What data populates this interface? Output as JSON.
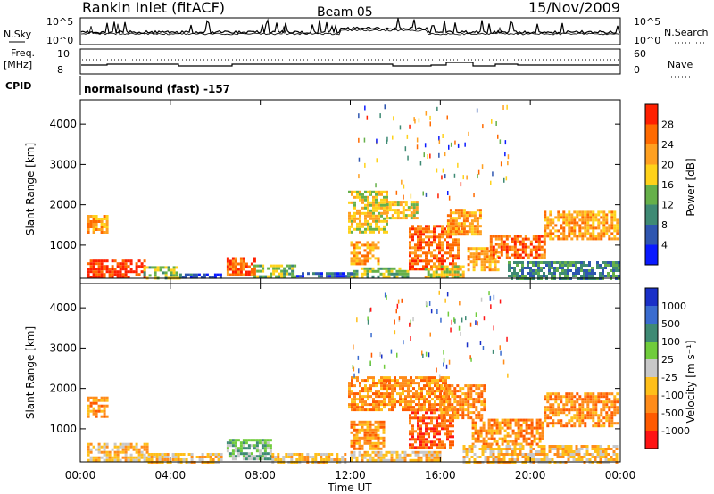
{
  "header": {
    "station": "Rankin Inlet (fitACF)",
    "beam": "Beam 05",
    "date": "15/Nov/2009"
  },
  "top_panels": {
    "nsky_label": "N.Sky",
    "nsearch_label": "N.Search",
    "nsky_ticks": [
      "10^5",
      "10^0"
    ],
    "nsearch_ticks": [
      "10^5",
      "10^0"
    ],
    "freq_label_1": "Freq.",
    "freq_label_2": "[MHz]",
    "freq_ticks": [
      "10",
      "8"
    ],
    "nave_label": "Nave",
    "nave_ticks": [
      "60",
      "0"
    ],
    "cpid_label": "CPID",
    "cpid_text": "normalsound (fast) -157"
  },
  "colors": {
    "power_scale": [
      "#0a1aff",
      "#2f56b0",
      "#3f8a74",
      "#66b04a",
      "#ffd21a",
      "#ffa020",
      "#ff6a00",
      "#ff2000"
    ],
    "velocity_scale": [
      "#ff1414",
      "#ff5a00",
      "#ff8c1a",
      "#ffbf1a",
      "#c8c8c8",
      "#70cc3c",
      "#3f8a74",
      "#3a6cd0",
      "#1a30c8"
    ]
  },
  "chart_data": [
    {
      "type": "heatmap",
      "name": "power",
      "xlabel": "Time UT",
      "ylabel": "Slant Range [km]",
      "x_ticks": [
        "00:00",
        "04:00",
        "08:00",
        "12:00",
        "16:00",
        "20:00",
        "00:00"
      ],
      "x_range_hours": [
        0,
        24
      ],
      "y_ticks": [
        1000,
        2000,
        3000,
        4000
      ],
      "ylim": [
        180,
        4600
      ],
      "colorbar_label": "Power [dB]",
      "colorbar_ticks": [
        "4",
        "8",
        "12",
        "16",
        "20",
        "24",
        "28"
      ],
      "colorbar_range": [
        0,
        30
      ],
      "regions": [
        {
          "t": [
            0.3,
            2.8
          ],
          "r": [
            200,
            640
          ],
          "level": 7
        },
        {
          "t": [
            0.3,
            1.2
          ],
          "r": [
            1350,
            1750
          ],
          "level": 5
        },
        {
          "t": [
            2.8,
            4.4
          ],
          "r": [
            200,
            480
          ],
          "level": 3
        },
        {
          "t": [
            4.4,
            6.3
          ],
          "r": [
            200,
            300
          ],
          "level": 1
        },
        {
          "t": [
            6.5,
            7.7
          ],
          "r": [
            250,
            700
          ],
          "level": 6
        },
        {
          "t": [
            7.7,
            9.6
          ],
          "r": [
            200,
            520
          ],
          "level": 3
        },
        {
          "t": [
            9.6,
            12.0
          ],
          "r": [
            200,
            330
          ],
          "level": 1
        },
        {
          "t": [
            11.9,
            13.6
          ],
          "r": [
            1300,
            2350
          ],
          "level": 4
        },
        {
          "t": [
            12.0,
            13.3
          ],
          "r": [
            550,
            1100
          ],
          "level": 5
        },
        {
          "t": [
            12.0,
            14.5
          ],
          "r": [
            200,
            450
          ],
          "level": 3
        },
        {
          "t": [
            13.6,
            15.0
          ],
          "r": [
            1650,
            2100
          ],
          "level": 4
        },
        {
          "t": [
            14.6,
            16.8
          ],
          "r": [
            400,
            1500
          ],
          "level": 6
        },
        {
          "t": [
            16.3,
            17.8
          ],
          "r": [
            1300,
            1900
          ],
          "level": 5
        },
        {
          "t": [
            15.3,
            17.0
          ],
          "r": [
            200,
            500
          ],
          "level": 4
        },
        {
          "t": [
            17.2,
            18.6
          ],
          "r": [
            400,
            950
          ],
          "level": 5
        },
        {
          "t": [
            18.2,
            20.6
          ],
          "r": [
            700,
            1250
          ],
          "level": 6
        },
        {
          "t": [
            20.6,
            23.9
          ],
          "r": [
            1150,
            1850
          ],
          "level": 5
        },
        {
          "t": [
            19.0,
            23.9
          ],
          "r": [
            200,
            600
          ],
          "level": 2
        }
      ]
    },
    {
      "type": "heatmap",
      "name": "velocity",
      "xlabel": "Time UT",
      "ylabel": "Slant Range [km]",
      "x_ticks": [
        "00:00",
        "04:00",
        "08:00",
        "12:00",
        "16:00",
        "20:00",
        "00:00"
      ],
      "x_range_hours": [
        0,
        24
      ],
      "y_ticks": [
        1000,
        2000,
        3000,
        4000
      ],
      "ylim": [
        180,
        4600
      ],
      "colorbar_label": "Velocity [m s⁻¹]",
      "colorbar_ticks": [
        "1000",
        "500",
        "100",
        "25",
        "-25",
        "-100",
        "-500",
        "-1000"
      ],
      "regions": [
        {
          "t": [
            0.3,
            3.0
          ],
          "r": [
            200,
            650
          ],
          "level": 3
        },
        {
          "t": [
            0.3,
            1.2
          ],
          "r": [
            1300,
            1800
          ],
          "level": 2
        },
        {
          "t": [
            3.0,
            6.3
          ],
          "r": [
            200,
            400
          ],
          "level": 3
        },
        {
          "t": [
            6.5,
            8.5
          ],
          "r": [
            220,
            750
          ],
          "level": 5
        },
        {
          "t": [
            8.5,
            11.8
          ],
          "r": [
            200,
            400
          ],
          "level": 3
        },
        {
          "t": [
            11.9,
            16.4
          ],
          "r": [
            1450,
            2300
          ],
          "level": 2
        },
        {
          "t": [
            12.0,
            13.5
          ],
          "r": [
            500,
            1200
          ],
          "level": 2
        },
        {
          "t": [
            14.6,
            16.6
          ],
          "r": [
            550,
            1500
          ],
          "level": 1
        },
        {
          "t": [
            16.0,
            18.0
          ],
          "r": [
            1300,
            2100
          ],
          "level": 2
        },
        {
          "t": [
            12.0,
            16.0
          ],
          "r": [
            200,
            450
          ],
          "level": 3
        },
        {
          "t": [
            17.4,
            20.6
          ],
          "r": [
            600,
            1250
          ],
          "level": 2
        },
        {
          "t": [
            20.6,
            23.9
          ],
          "r": [
            1100,
            1900
          ],
          "level": 2
        },
        {
          "t": [
            17.0,
            23.9
          ],
          "r": [
            200,
            600
          ],
          "level": 3
        }
      ]
    }
  ]
}
